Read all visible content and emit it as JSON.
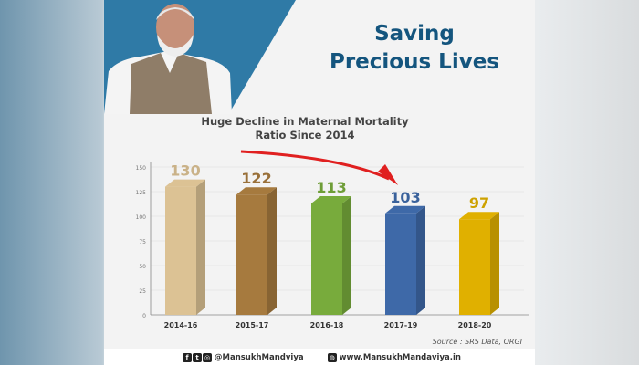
{
  "header": {
    "title_line1": "Saving",
    "title_line2": "Precious Lives"
  },
  "footer": {
    "social_handle": "@MansukhMandviya",
    "website": "www.MansukhMandaviya.in",
    "icons": [
      "facebook-icon",
      "twitter-icon",
      "instagram-icon",
      "globe-icon"
    ]
  },
  "chart_data": {
    "type": "bar",
    "title": "Huge Decline in Maternal Mortality Ratio Since 2014",
    "title_line1": "Huge Decline in Maternal Mortality",
    "title_line2": "Ratio Since 2014",
    "categories": [
      "2014-16",
      "2015-17",
      "2016-18",
      "2017-19",
      "2018-20"
    ],
    "values": [
      130,
      122,
      113,
      103,
      97
    ],
    "value_labels": [
      "130",
      "122",
      "113",
      "103",
      "97"
    ],
    "colors": [
      "#dcc294",
      "#a67a3e",
      "#78ab3c",
      "#3e69a8",
      "#e0b000"
    ],
    "ylim": [
      0,
      150
    ],
    "yticks": [
      "0",
      "25",
      "50",
      "75",
      "100",
      "125",
      "150"
    ],
    "grid": true,
    "annotation": "red downward trend arrow",
    "source": "Source : SRS Data, ORGI"
  }
}
